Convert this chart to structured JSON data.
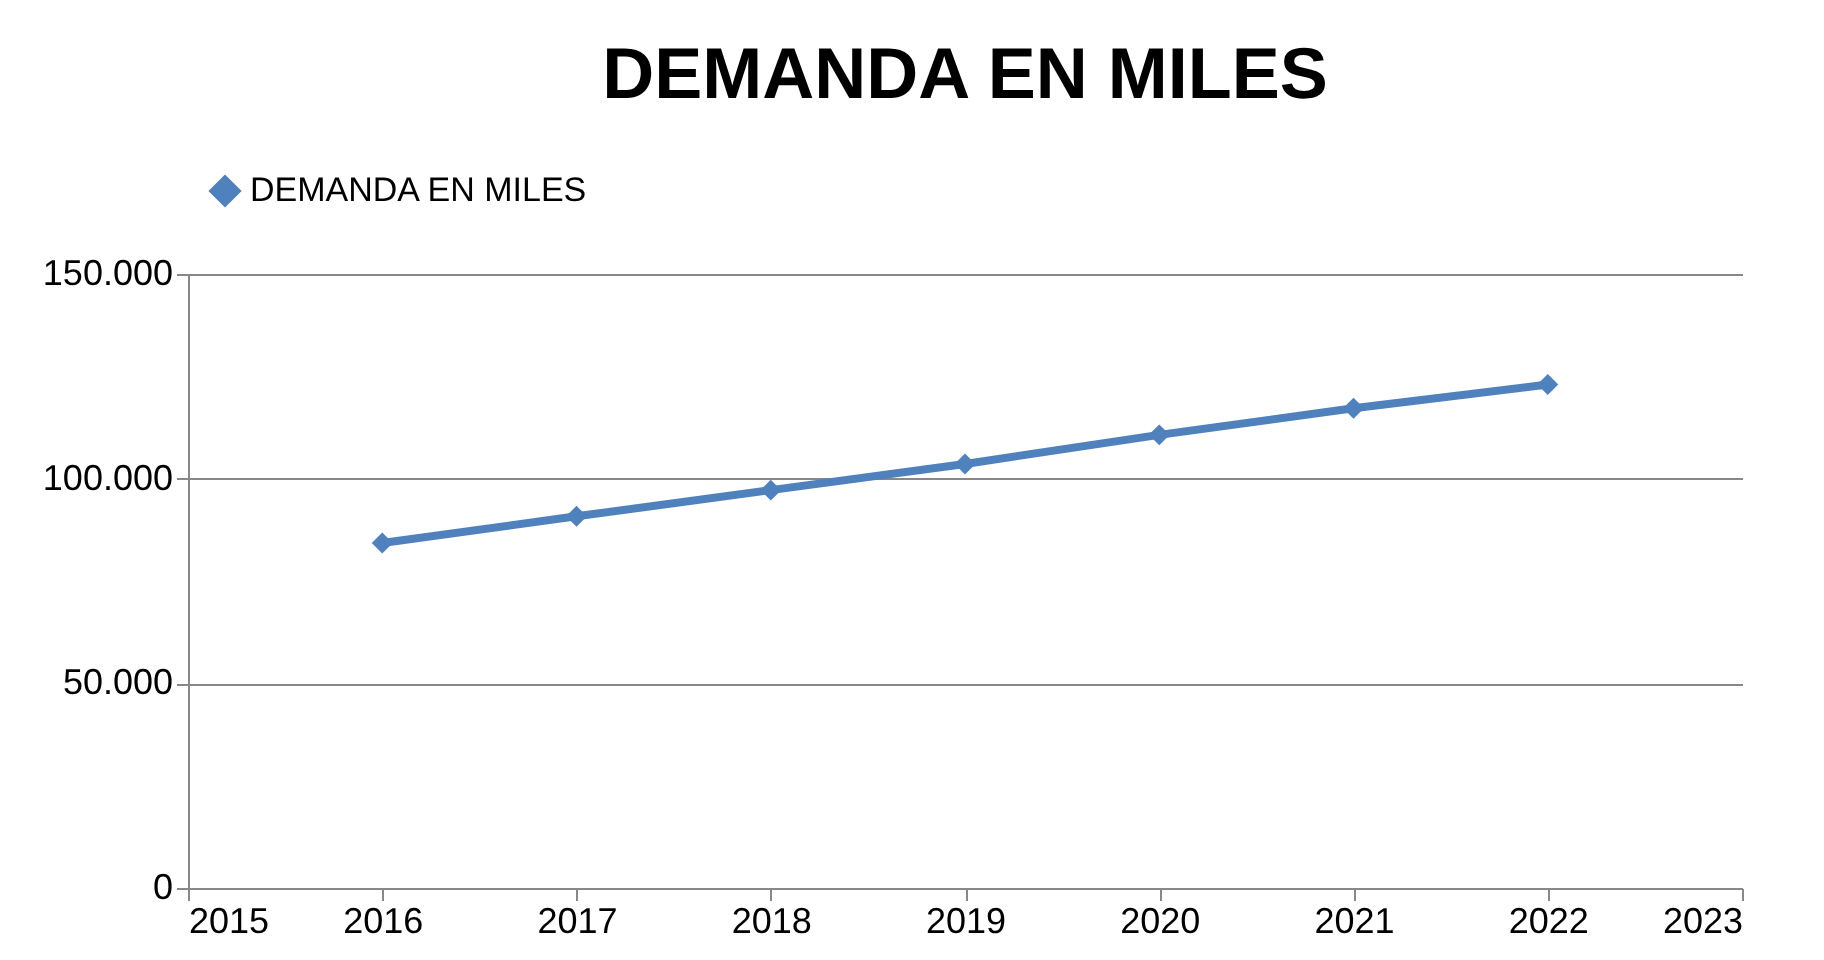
{
  "chart_data": {
    "type": "line",
    "title": "DEMANDA EN MILES",
    "x": [
      2016,
      2017,
      2018,
      2019,
      2020,
      2021,
      2022
    ],
    "series": [
      {
        "name": "DEMANDA EN MILES",
        "color": "#4f81bd",
        "values": [
          84300,
          90800,
          97200,
          103600,
          110700,
          117200,
          123000
        ]
      }
    ],
    "xlim": [
      2015,
      2023
    ],
    "xticks": [
      2015,
      2016,
      2017,
      2018,
      2019,
      2020,
      2021,
      2022,
      2023
    ],
    "ylim": [
      0,
      150000
    ],
    "yticks": [
      0,
      {
        "value": 50000,
        "label": "50.000"
      },
      {
        "value": 100000,
        "label": "100.000"
      },
      {
        "value": 150000,
        "label": "150.000"
      }
    ],
    "grid": "y",
    "legend": "top",
    "marker": "diamond",
    "line_style": "solid"
  }
}
